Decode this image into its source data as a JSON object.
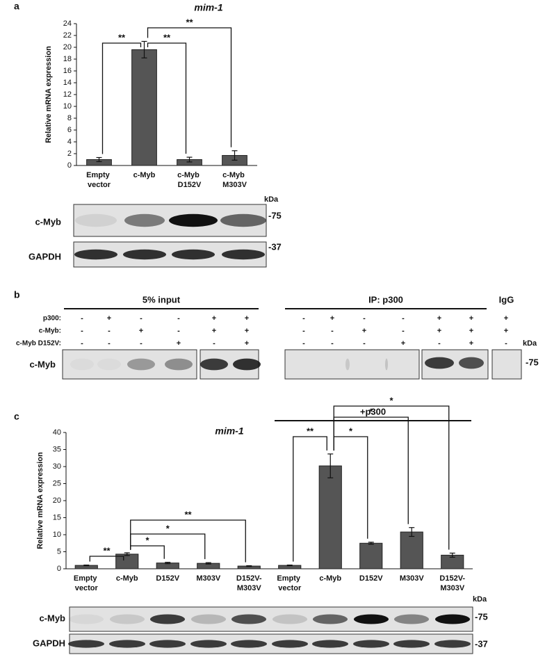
{
  "panel_labels": [
    "a",
    "b",
    "c"
  ],
  "chart_data": [
    {
      "type": "bar",
      "title": "mim-1",
      "y_label": "Relative mRNA expression",
      "categories": [
        "Empty vector",
        "c-Myb",
        "c-Myb D152V",
        "c-Myb M303V"
      ],
      "values": [
        1.0,
        19.6,
        1.0,
        1.7
      ],
      "errors": [
        0.35,
        1.4,
        0.4,
        0.8
      ],
      "color": "#555555",
      "ylim": [
        0,
        24
      ],
      "yticks": [
        0,
        2,
        4,
        6,
        8,
        10,
        12,
        14,
        16,
        18,
        20,
        22,
        24
      ],
      "annotations": [
        {
          "label": "**",
          "between": [
            0,
            1
          ]
        },
        {
          "label": "**",
          "between": [
            1,
            2
          ]
        },
        {
          "label": "**",
          "between": [
            1,
            3
          ]
        }
      ]
    },
    {
      "type": "bar",
      "title": "mim-1",
      "group_label": "+p300",
      "y_label": "Relative mRNA expression",
      "categories": [
        "Empty vector",
        "c-Myb",
        "D152V",
        "M303V",
        "D152V-M303V",
        "Empty vector",
        "c-Myb",
        "D152V",
        "M303V",
        "D152V-M303V"
      ],
      "values": [
        1.0,
        4.3,
        1.7,
        1.6,
        0.8,
        1.0,
        30.2,
        7.5,
        10.8,
        4.0
      ],
      "errors": [
        0.1,
        0.4,
        0.2,
        0.2,
        0.1,
        0.1,
        3.5,
        0.3,
        1.3,
        0.6
      ],
      "color": "#555555",
      "ylim": [
        0,
        40
      ],
      "yticks": [
        0,
        5,
        10,
        15,
        20,
        25,
        30,
        35,
        40
      ],
      "annotations": [
        {
          "label": "**",
          "between": [
            0,
            1
          ]
        },
        {
          "label": "*",
          "between": [
            1,
            2
          ]
        },
        {
          "label": "*",
          "between": [
            1,
            3
          ]
        },
        {
          "label": "**",
          "between": [
            1,
            4
          ]
        },
        {
          "label": "**",
          "between": [
            5,
            6
          ]
        },
        {
          "label": "*",
          "between": [
            6,
            7
          ]
        },
        {
          "label": "*",
          "between": [
            6,
            8
          ]
        },
        {
          "label": "*",
          "between": [
            6,
            9
          ]
        }
      ]
    }
  ],
  "blot_a": {
    "kda": "kDa",
    "rows": [
      {
        "label": "c-Myb",
        "marker": "-75"
      },
      {
        "label": "GAPDH",
        "marker": "-37"
      }
    ]
  },
  "panel_b": {
    "row_labels": [
      "p300:",
      "c-Myb:",
      "c-Myb D152V:"
    ],
    "groups": [
      {
        "title": "5% input",
        "signs": [
          [
            "-",
            "+",
            "-",
            "-",
            "+",
            "+"
          ],
          [
            "-",
            "-",
            "+",
            "-",
            "+",
            "+"
          ],
          [
            "-",
            "-",
            "-",
            "+",
            "-",
            "+"
          ]
        ]
      },
      {
        "title": "IP: p300",
        "signs": [
          [
            "-",
            "+",
            "-",
            "-",
            "+",
            "+"
          ],
          [
            "-",
            "-",
            "+",
            "-",
            "+",
            "+"
          ],
          [
            "-",
            "-",
            "-",
            "+",
            "-",
            "+"
          ]
        ]
      },
      {
        "title": "IgG",
        "signs": [
          [
            "+"
          ],
          [
            "+"
          ],
          [
            "-"
          ]
        ]
      }
    ],
    "blot_label": "c-Myb",
    "kda": "kDa",
    "marker": "-75"
  },
  "blot_c": {
    "kda": "kDa",
    "rows": [
      {
        "label": "c-Myb",
        "marker": "-75"
      },
      {
        "label": "GAPDH",
        "marker": "-37"
      }
    ]
  }
}
